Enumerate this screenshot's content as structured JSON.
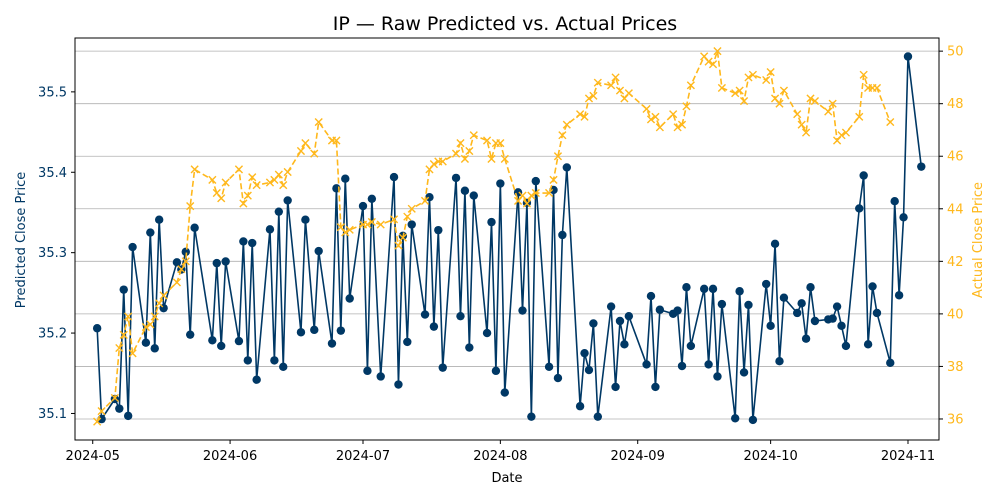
{
  "chart_data": {
    "type": "line",
    "title": "IP — Raw Predicted vs. Actual Prices",
    "xlabel": "Date",
    "ylabel_left": "Predicted Close Price",
    "ylabel_right": "Actual Close Price",
    "x_tick_labels": [
      "2024-05",
      "2024-06",
      "2024-07",
      "2024-08",
      "2024-09",
      "2024-10",
      "2024-11"
    ],
    "y_left_ticks": [
      "35.1",
      "35.2",
      "35.3",
      "35.4",
      "35.5"
    ],
    "y_right_ticks": [
      "36",
      "38",
      "40",
      "42",
      "44",
      "46",
      "48",
      "50"
    ],
    "ylim_left": [
      35.067,
      35.567
    ],
    "ylim_right": [
      35.2,
      50.5
    ],
    "grid": "horizontal (right axis)",
    "colors": {
      "predicted": "#003865",
      "actual": "#FFB81C",
      "left_axis": "#003865",
      "right_axis": "#FFB81C"
    },
    "series": [
      {
        "name": "",
        "axis": "left",
        "marker": "circle",
        "points": [
          [
            "2024-05-02",
            35.206
          ],
          [
            "2024-05-03",
            35.093
          ],
          [
            "2024-05-06",
            35.118
          ],
          [
            "2024-05-07",
            35.106
          ],
          [
            "2024-05-08",
            35.254
          ],
          [
            "2024-05-09",
            35.097
          ],
          [
            "2024-05-10",
            35.307
          ],
          [
            "2024-05-13",
            35.188
          ],
          [
            "2024-05-14",
            35.325
          ],
          [
            "2024-05-15",
            35.181
          ],
          [
            "2024-05-16",
            35.341
          ],
          [
            "2024-05-17",
            35.231
          ],
          [
            "2024-05-20",
            35.288
          ],
          [
            "2024-05-21",
            35.279
          ],
          [
            "2024-05-22",
            35.301
          ],
          [
            "2024-05-23",
            35.198
          ],
          [
            "2024-05-24",
            35.331
          ],
          [
            "2024-05-28",
            35.191
          ],
          [
            "2024-05-29",
            35.287
          ],
          [
            "2024-05-30",
            35.184
          ],
          [
            "2024-05-31",
            35.289
          ],
          [
            "2024-06-03",
            35.19
          ],
          [
            "2024-06-04",
            35.314
          ],
          [
            "2024-06-05",
            35.166
          ],
          [
            "2024-06-06",
            35.312
          ],
          [
            "2024-06-07",
            35.142
          ],
          [
            "2024-06-10",
            35.329
          ],
          [
            "2024-06-11",
            35.166
          ],
          [
            "2024-06-12",
            35.351
          ],
          [
            "2024-06-13",
            35.158
          ],
          [
            "2024-06-14",
            35.365
          ],
          [
            "2024-06-17",
            35.201
          ],
          [
            "2024-06-18",
            35.341
          ],
          [
            "2024-06-20",
            35.204
          ],
          [
            "2024-06-21",
            35.302
          ],
          [
            "2024-06-24",
            35.187
          ],
          [
            "2024-06-25",
            35.38
          ],
          [
            "2024-06-26",
            35.203
          ],
          [
            "2024-06-27",
            35.392
          ],
          [
            "2024-06-28",
            35.243
          ],
          [
            "2024-07-01",
            35.358
          ],
          [
            "2024-07-02",
            35.153
          ],
          [
            "2024-07-03",
            35.367
          ],
          [
            "2024-07-05",
            35.146
          ],
          [
            "2024-07-08",
            35.394
          ],
          [
            "2024-07-09",
            35.136
          ],
          [
            "2024-07-10",
            35.321
          ],
          [
            "2024-07-11",
            35.189
          ],
          [
            "2024-07-12",
            35.335
          ],
          [
            "2024-07-15",
            35.223
          ],
          [
            "2024-07-16",
            35.369
          ],
          [
            "2024-07-17",
            35.208
          ],
          [
            "2024-07-18",
            35.328
          ],
          [
            "2024-07-19",
            35.157
          ],
          [
            "2024-07-22",
            35.393
          ],
          [
            "2024-07-23",
            35.221
          ],
          [
            "2024-07-24",
            35.377
          ],
          [
            "2024-07-25",
            35.182
          ],
          [
            "2024-07-26",
            35.371
          ],
          [
            "2024-07-29",
            35.2
          ],
          [
            "2024-07-30",
            35.338
          ],
          [
            "2024-07-31",
            35.153
          ],
          [
            "2024-08-01",
            35.386
          ],
          [
            "2024-08-02",
            35.126
          ],
          [
            "2024-08-05",
            35.375
          ],
          [
            "2024-08-06",
            35.228
          ],
          [
            "2024-08-07",
            35.362
          ],
          [
            "2024-08-08",
            35.096
          ],
          [
            "2024-08-09",
            35.389
          ],
          [
            "2024-08-12",
            35.158
          ],
          [
            "2024-08-13",
            35.378
          ],
          [
            "2024-08-14",
            35.144
          ],
          [
            "2024-08-15",
            35.322
          ],
          [
            "2024-08-16",
            35.406
          ],
          [
            "2024-08-19",
            35.109
          ],
          [
            "2024-08-20",
            35.175
          ],
          [
            "2024-08-21",
            35.154
          ],
          [
            "2024-08-22",
            35.212
          ],
          [
            "2024-08-23",
            35.096
          ],
          [
            "2024-08-26",
            35.233
          ],
          [
            "2024-08-27",
            35.133
          ],
          [
            "2024-08-28",
            35.215
          ],
          [
            "2024-08-29",
            35.186
          ],
          [
            "2024-08-30",
            35.221
          ],
          [
            "2024-09-03",
            35.161
          ],
          [
            "2024-09-04",
            35.246
          ],
          [
            "2024-09-05",
            35.133
          ],
          [
            "2024-09-06",
            35.229
          ],
          [
            "2024-09-09",
            35.224
          ],
          [
            "2024-09-10",
            35.228
          ],
          [
            "2024-09-11",
            35.159
          ],
          [
            "2024-09-12",
            35.257
          ],
          [
            "2024-09-13",
            35.184
          ],
          [
            "2024-09-16",
            35.255
          ],
          [
            "2024-09-17",
            35.161
          ],
          [
            "2024-09-18",
            35.255
          ],
          [
            "2024-09-19",
            35.146
          ],
          [
            "2024-09-20",
            35.236
          ],
          [
            "2024-09-23",
            35.094
          ],
          [
            "2024-09-24",
            35.252
          ],
          [
            "2024-09-25",
            35.151
          ],
          [
            "2024-09-26",
            35.235
          ],
          [
            "2024-09-27",
            35.092
          ],
          [
            "2024-09-30",
            35.261
          ],
          [
            "2024-10-01",
            35.209
          ],
          [
            "2024-10-02",
            35.311
          ],
          [
            "2024-10-03",
            35.165
          ],
          [
            "2024-10-04",
            35.244
          ],
          [
            "2024-10-07",
            35.225
          ],
          [
            "2024-10-08",
            35.237
          ],
          [
            "2024-10-09",
            35.193
          ],
          [
            "2024-10-10",
            35.257
          ],
          [
            "2024-10-11",
            35.215
          ],
          [
            "2024-10-14",
            35.217
          ],
          [
            "2024-10-15",
            35.218
          ],
          [
            "2024-10-16",
            35.233
          ],
          [
            "2024-10-17",
            35.209
          ],
          [
            "2024-10-18",
            35.184
          ],
          [
            "2024-10-21",
            35.355
          ],
          [
            "2024-10-22",
            35.396
          ],
          [
            "2024-10-23",
            35.186
          ],
          [
            "2024-10-24",
            35.258
          ],
          [
            "2024-10-25",
            35.225
          ],
          [
            "2024-10-28",
            35.163
          ],
          [
            "2024-10-29",
            35.364
          ],
          [
            "2024-10-30",
            35.247
          ],
          [
            "2024-10-31",
            35.344
          ],
          [
            "2024-11-01",
            35.544
          ],
          [
            "2024-11-04",
            35.407
          ]
        ]
      },
      {
        "name": "",
        "axis": "right",
        "marker": "x",
        "linestyle": "dashed",
        "points": [
          [
            "2024-05-02",
            35.9
          ],
          [
            "2024-05-03",
            36.3
          ],
          [
            "2024-05-06",
            36.8
          ],
          [
            "2024-05-07",
            38.7
          ],
          [
            "2024-05-08",
            39.2
          ],
          [
            "2024-05-09",
            39.9
          ],
          [
            "2024-05-10",
            38.5
          ],
          [
            "2024-05-13",
            39.5
          ],
          [
            "2024-05-14",
            39.6
          ],
          [
            "2024-05-15",
            39.9
          ],
          [
            "2024-05-16",
            40.4
          ],
          [
            "2024-05-17",
            40.7
          ],
          [
            "2024-05-20",
            41.2
          ],
          [
            "2024-05-21",
            41.7
          ],
          [
            "2024-05-22",
            42.0
          ],
          [
            "2024-05-23",
            44.1
          ],
          [
            "2024-05-24",
            45.5
          ],
          [
            "2024-05-28",
            45.1
          ],
          [
            "2024-05-29",
            44.6
          ],
          [
            "2024-05-30",
            44.4
          ],
          [
            "2024-05-31",
            45.0
          ],
          [
            "2024-06-03",
            45.5
          ],
          [
            "2024-06-04",
            44.2
          ],
          [
            "2024-06-05",
            44.5
          ],
          [
            "2024-06-06",
            45.2
          ],
          [
            "2024-06-07",
            44.9
          ],
          [
            "2024-06-10",
            45.0
          ],
          [
            "2024-06-11",
            45.1
          ],
          [
            "2024-06-12",
            45.3
          ],
          [
            "2024-06-13",
            44.9
          ],
          [
            "2024-06-14",
            45.4
          ],
          [
            "2024-06-17",
            46.2
          ],
          [
            "2024-06-18",
            46.5
          ],
          [
            "2024-06-20",
            46.1
          ],
          [
            "2024-06-21",
            47.3
          ],
          [
            "2024-06-24",
            46.6
          ],
          [
            "2024-06-25",
            46.6
          ],
          [
            "2024-06-26",
            43.3
          ],
          [
            "2024-06-27",
            43.1
          ],
          [
            "2024-06-28",
            43.2
          ],
          [
            "2024-07-01",
            43.4
          ],
          [
            "2024-07-02",
            43.4
          ],
          [
            "2024-07-03",
            43.5
          ],
          [
            "2024-07-05",
            43.4
          ],
          [
            "2024-07-08",
            43.6
          ],
          [
            "2024-07-09",
            42.6
          ],
          [
            "2024-07-10",
            42.9
          ],
          [
            "2024-07-11",
            43.7
          ],
          [
            "2024-07-12",
            44.0
          ],
          [
            "2024-07-15",
            44.3
          ],
          [
            "2024-07-16",
            45.5
          ],
          [
            "2024-07-17",
            45.7
          ],
          [
            "2024-07-18",
            45.8
          ],
          [
            "2024-07-19",
            45.8
          ],
          [
            "2024-07-22",
            46.1
          ],
          [
            "2024-07-23",
            46.5
          ],
          [
            "2024-07-24",
            45.9
          ],
          [
            "2024-07-25",
            46.2
          ],
          [
            "2024-07-26",
            46.8
          ],
          [
            "2024-07-29",
            46.6
          ],
          [
            "2024-07-30",
            45.9
          ],
          [
            "2024-07-31",
            46.5
          ],
          [
            "2024-08-01",
            46.5
          ],
          [
            "2024-08-02",
            45.9
          ],
          [
            "2024-08-05",
            44.3
          ],
          [
            "2024-08-06",
            44.5
          ],
          [
            "2024-08-07",
            44.2
          ],
          [
            "2024-08-08",
            44.5
          ],
          [
            "2024-08-09",
            44.6
          ],
          [
            "2024-08-12",
            44.6
          ],
          [
            "2024-08-13",
            45.1
          ],
          [
            "2024-08-14",
            46.0
          ],
          [
            "2024-08-15",
            46.8
          ],
          [
            "2024-08-16",
            47.2
          ],
          [
            "2024-08-19",
            47.6
          ],
          [
            "2024-08-20",
            47.5
          ],
          [
            "2024-08-21",
            48.2
          ],
          [
            "2024-08-22",
            48.3
          ],
          [
            "2024-08-23",
            48.8
          ],
          [
            "2024-08-26",
            48.7
          ],
          [
            "2024-08-27",
            49.0
          ],
          [
            "2024-08-28",
            48.5
          ],
          [
            "2024-08-29",
            48.2
          ],
          [
            "2024-08-30",
            48.4
          ],
          [
            "2024-09-03",
            47.8
          ],
          [
            "2024-09-04",
            47.4
          ],
          [
            "2024-09-05",
            47.5
          ],
          [
            "2024-09-06",
            47.1
          ],
          [
            "2024-09-09",
            47.6
          ],
          [
            "2024-09-10",
            47.1
          ],
          [
            "2024-09-11",
            47.2
          ],
          [
            "2024-09-12",
            47.9
          ],
          [
            "2024-09-13",
            48.7
          ],
          [
            "2024-09-16",
            49.8
          ],
          [
            "2024-09-17",
            49.6
          ],
          [
            "2024-09-18",
            49.5
          ],
          [
            "2024-09-19",
            50.0
          ],
          [
            "2024-09-20",
            48.6
          ],
          [
            "2024-09-23",
            48.4
          ],
          [
            "2024-09-24",
            48.5
          ],
          [
            "2024-09-25",
            48.1
          ],
          [
            "2024-09-26",
            49.0
          ],
          [
            "2024-09-27",
            49.1
          ],
          [
            "2024-09-30",
            48.9
          ],
          [
            "2024-10-01",
            49.2
          ],
          [
            "2024-10-02",
            48.2
          ],
          [
            "2024-10-03",
            48.0
          ],
          [
            "2024-10-04",
            48.5
          ],
          [
            "2024-10-07",
            47.6
          ],
          [
            "2024-10-08",
            47.2
          ],
          [
            "2024-10-09",
            46.9
          ],
          [
            "2024-10-10",
            48.2
          ],
          [
            "2024-10-11",
            48.1
          ],
          [
            "2024-10-14",
            47.7
          ],
          [
            "2024-10-15",
            48.0
          ],
          [
            "2024-10-16",
            46.6
          ],
          [
            "2024-10-17",
            46.8
          ],
          [
            "2024-10-18",
            46.9
          ],
          [
            "2024-10-21",
            47.5
          ],
          [
            "2024-10-22",
            49.1
          ],
          [
            "2024-10-23",
            48.6
          ],
          [
            "2024-10-24",
            48.6
          ],
          [
            "2024-10-25",
            48.6
          ],
          [
            "2024-10-28",
            47.3
          ]
        ]
      }
    ]
  }
}
